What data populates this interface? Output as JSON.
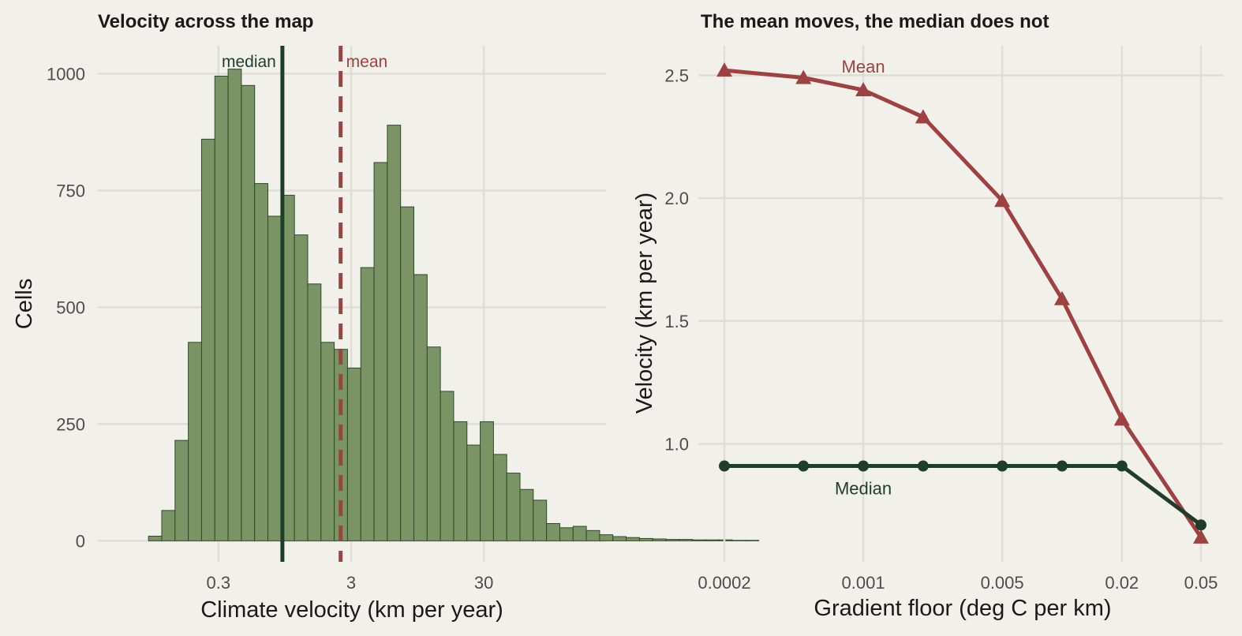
{
  "colors": {
    "background": "#f2f0ea",
    "grid": "#dfddd6",
    "bar_fill": "#7a9466",
    "bar_edge": "#2f4a2a",
    "median": "#1f3d2b",
    "mean": "#a04141"
  },
  "chart_data": [
    {
      "type": "bar",
      "subtype": "histogram",
      "title": "Velocity across the map",
      "xlabel": "Climate velocity (km per year)",
      "ylabel": "Cells",
      "x_scale": "log10",
      "xticks": [
        0.3,
        3,
        30
      ],
      "xtick_labels": [
        "0.3",
        "3",
        "30"
      ],
      "yticks": [
        0,
        250,
        500,
        750,
        1000
      ],
      "yticks_labels": [
        "0",
        "250",
        "500",
        "750",
        "1000"
      ],
      "xlim": [
        0.037,
        250
      ],
      "ylim": [
        -45,
        1060
      ],
      "grid": true,
      "bin_start": 0.0891,
      "bin_width_log10": 0.1,
      "values": [
        10,
        65,
        215,
        425,
        860,
        995,
        1010,
        975,
        765,
        695,
        740,
        655,
        550,
        425,
        410,
        370,
        585,
        810,
        890,
        715,
        570,
        415,
        320,
        255,
        205,
        255,
        185,
        145,
        110,
        87,
        37,
        28,
        31,
        22,
        13,
        9,
        7,
        5,
        4,
        3,
        3,
        2,
        2,
        2,
        1,
        1
      ],
      "reference_lines": [
        {
          "name": "median",
          "label": "median",
          "x": 0.91,
          "style": "solid"
        },
        {
          "name": "mean",
          "label": "mean",
          "x": 2.5,
          "style": "dashed"
        }
      ]
    },
    {
      "type": "line",
      "title": "The mean moves, the median does not",
      "xlabel": "Gradient floor (deg C per km)",
      "ylabel": "Velocity (km per year)",
      "x_scale": "log10",
      "x": [
        0.0002,
        0.0005,
        0.001,
        0.002,
        0.005,
        0.01,
        0.02,
        0.05
      ],
      "xticks": [
        0.0002,
        0.001,
        0.005,
        0.02,
        0.05
      ],
      "xtick_labels": [
        "0.0002",
        "0.001",
        "0.005",
        "0.02",
        "0.05"
      ],
      "yticks": [
        1.0,
        1.5,
        2.0,
        2.5
      ],
      "ytick_labels": [
        "1.0",
        "1.5",
        "2.0",
        "2.5"
      ],
      "ylim": [
        0.52,
        2.62
      ],
      "grid": true,
      "series": [
        {
          "name": "Mean",
          "marker": "triangle",
          "values": [
            2.52,
            2.49,
            2.44,
            2.33,
            1.99,
            1.59,
            1.1,
            0.62
          ]
        },
        {
          "name": "Median",
          "marker": "circle",
          "values": [
            0.91,
            0.91,
            0.91,
            0.91,
            0.91,
            0.91,
            0.91,
            0.67
          ]
        }
      ]
    }
  ]
}
